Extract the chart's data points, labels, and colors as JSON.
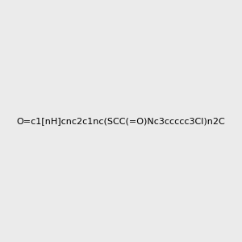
{
  "background_color": "#ebebeb",
  "molecule_smiles": "O=c1[nH]cnc2c1nc(SCC(=O)Nc3ccccc3Cl)n2C",
  "title": "",
  "img_size": [
    300,
    300
  ]
}
